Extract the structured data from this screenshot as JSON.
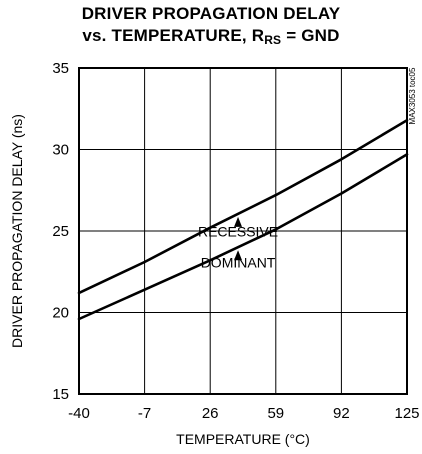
{
  "title": {
    "line1": "DRIVER PROPAGATION DELAY",
    "line2_main": "vs. TEMPERATURE, R",
    "line2_sub": "RS",
    "line2_end": " = GND"
  },
  "figure_code": "MAX3053 toc05",
  "chart_data": {
    "type": "line",
    "title": "DRIVER PROPAGATION DELAY vs. TEMPERATURE, RRS = GND",
    "xlabel": "TEMPERATURE (°C)",
    "ylabel": "DRIVER PROPAGATION DELAY (ns)",
    "xlim": [
      -40,
      125
    ],
    "ylim": [
      15,
      35
    ],
    "xticks": [
      -40,
      -7,
      26,
      59,
      92,
      125
    ],
    "yticks": [
      15,
      20,
      25,
      30,
      35
    ],
    "grid": true,
    "series": [
      {
        "name": "RECESSIVE",
        "x": [
          -40,
          -7,
          26,
          59,
          92,
          125
        ],
        "y": [
          21.2,
          23.1,
          25.2,
          27.2,
          29.4,
          31.8
        ]
      },
      {
        "name": "DOMINANT",
        "x": [
          -40,
          -7,
          26,
          59,
          92,
          125
        ],
        "y": [
          19.6,
          21.4,
          23.2,
          25.1,
          27.3,
          29.7
        ]
      }
    ],
    "annotations": [
      {
        "text": "RECESSIVE",
        "series": "RECESSIVE",
        "x": 40,
        "y": 25.9
      },
      {
        "text": "DOMINANT",
        "series": "DOMINANT",
        "x": 40,
        "y": 24.0
      }
    ]
  }
}
